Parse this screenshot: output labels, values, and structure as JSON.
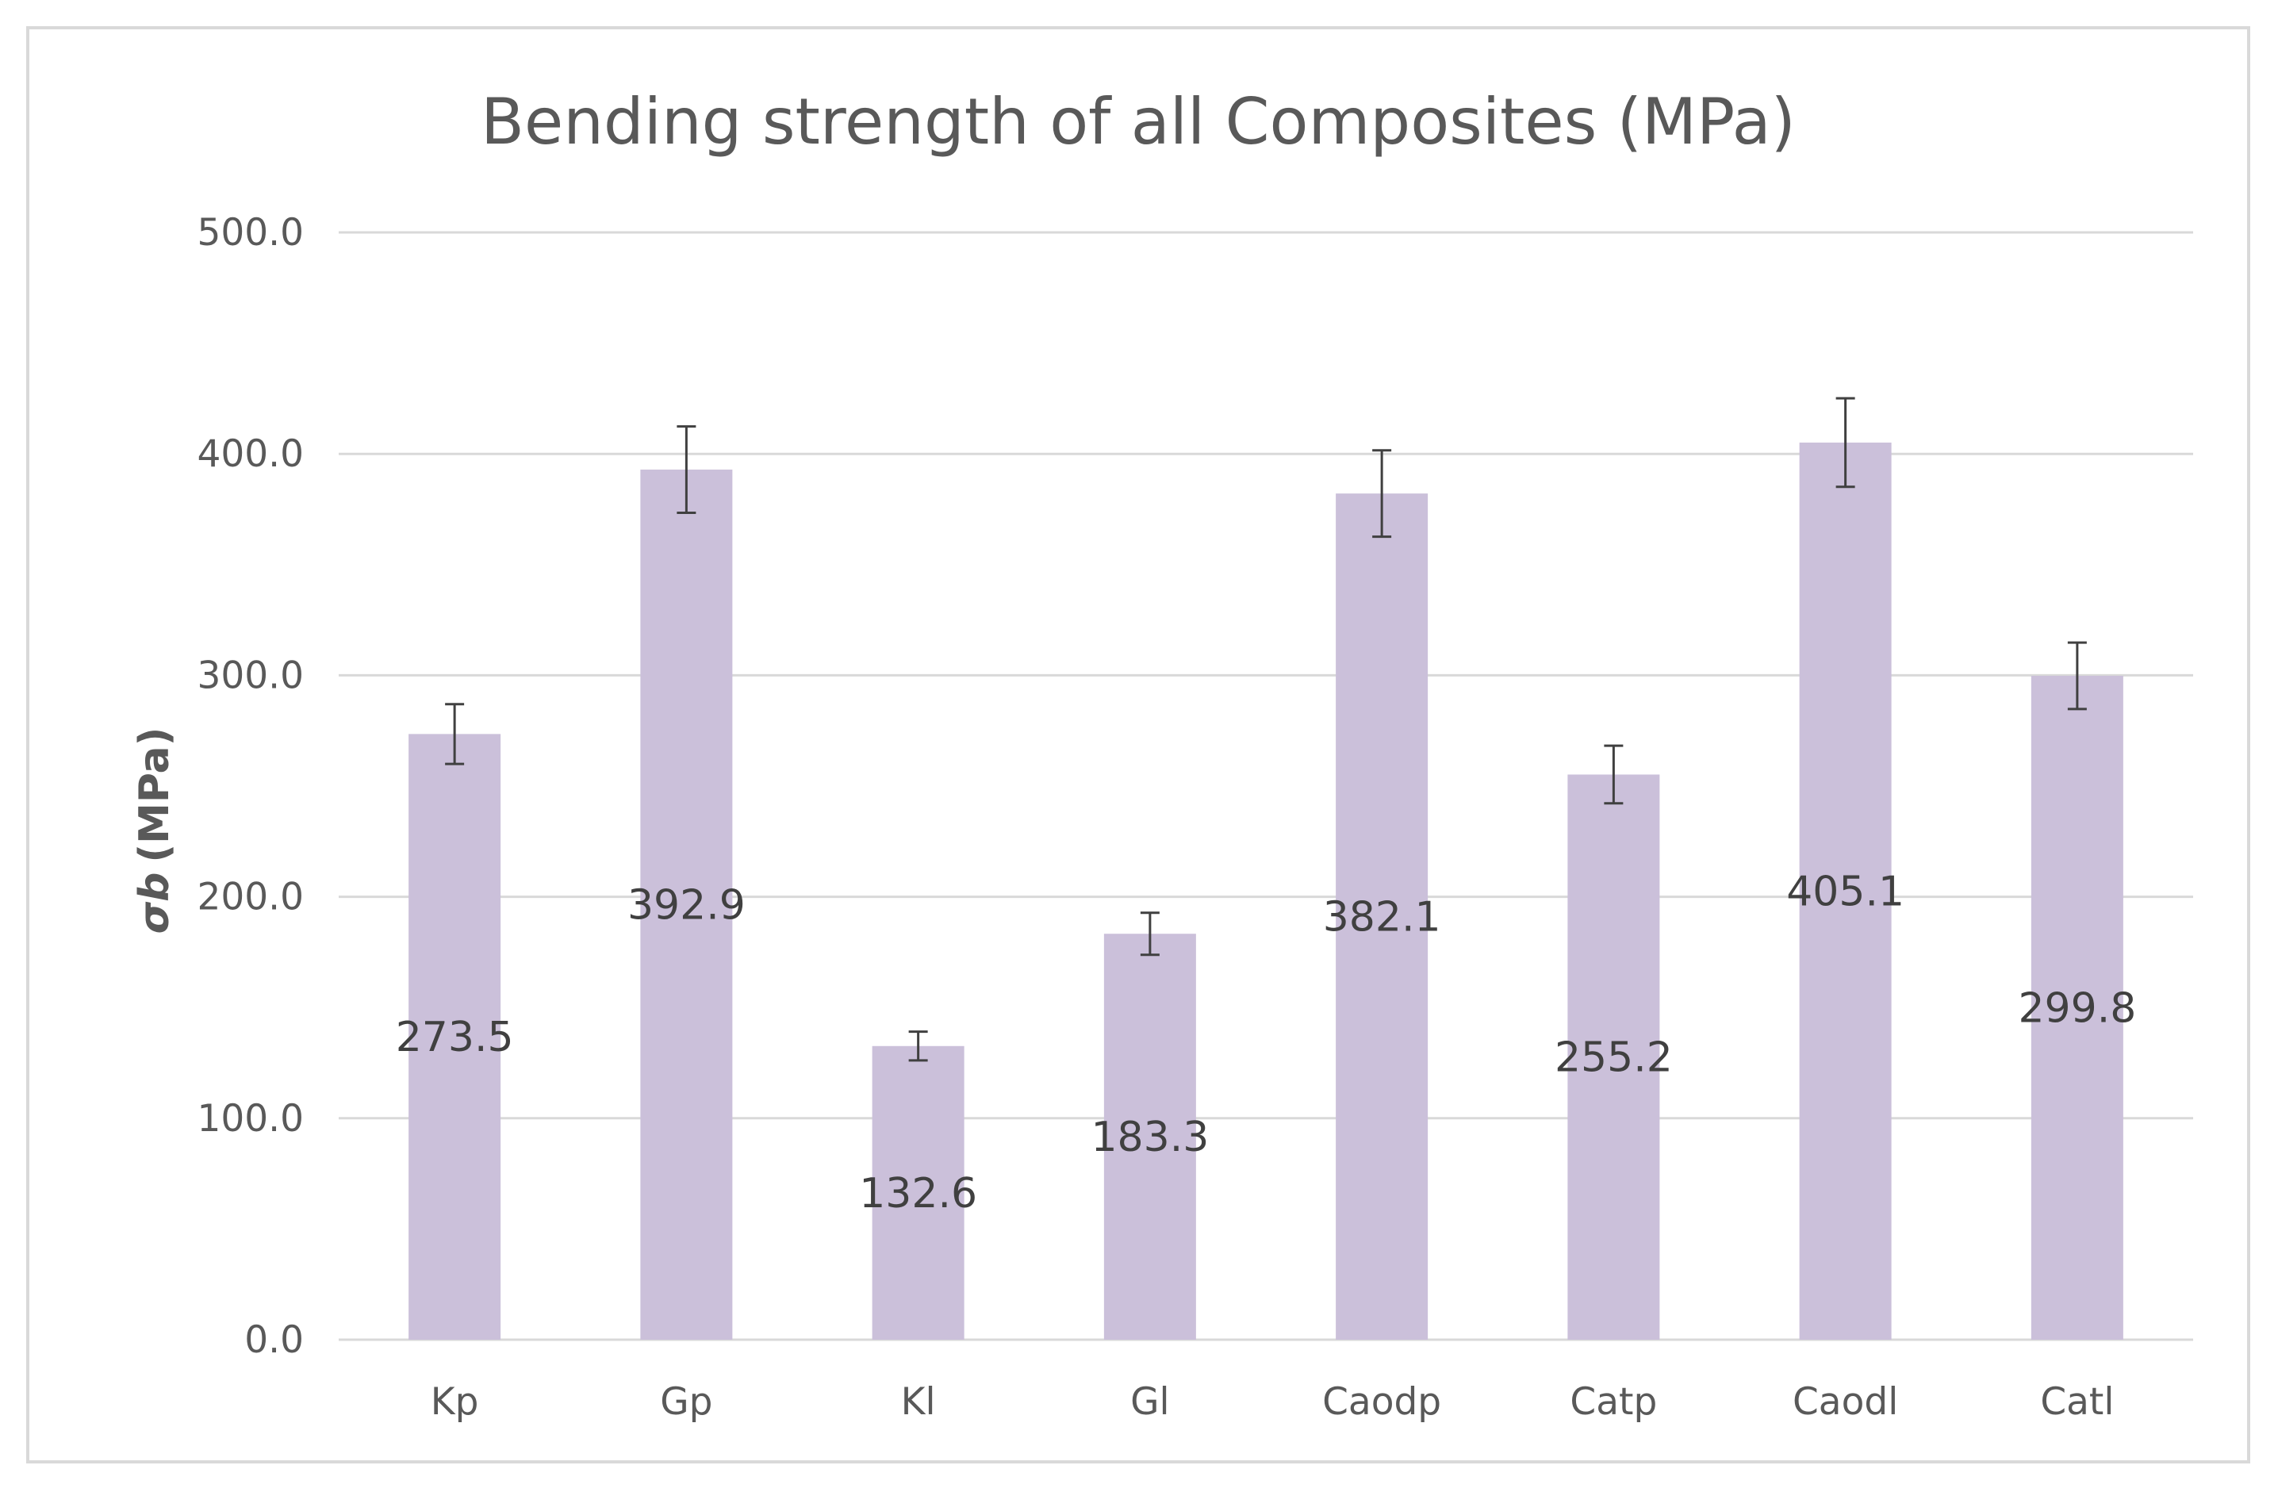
{
  "chart_data": {
    "type": "bar",
    "title": "Bending strength of all Composites (MPa)",
    "ylabel_symbol": "σb",
    "ylabel_unit": "(MPa)",
    "xlabel": "",
    "categories": [
      "Kp",
      "Gp",
      "Kl",
      "Gl",
      "Caodp",
      "Catp",
      "Caodl",
      "Catl"
    ],
    "values": [
      273.5,
      392.9,
      132.6,
      183.3,
      382.1,
      255.2,
      405.1,
      299.8
    ],
    "value_labels": [
      "273.5",
      "392.9",
      "132.6",
      "183.3",
      "382.1",
      "255.2",
      "405.1",
      "299.8"
    ],
    "error": [
      13.5,
      19.5,
      6.5,
      9.5,
      19.5,
      13.0,
      20.0,
      15.0
    ],
    "ylim": [
      0,
      500
    ],
    "yticks": [
      0,
      100,
      200,
      300,
      400,
      500
    ],
    "ytick_labels": [
      "0.0",
      "100.0",
      "200.0",
      "300.0",
      "400.0",
      "500.0"
    ],
    "grid": true,
    "legend": "none",
    "colors": {
      "bar": "#cbc0da",
      "grid": "#d9d9d9",
      "error_bar": "#404040",
      "frame": "#d9d9d9",
      "text": "#595959",
      "data_label": "#404040"
    }
  }
}
